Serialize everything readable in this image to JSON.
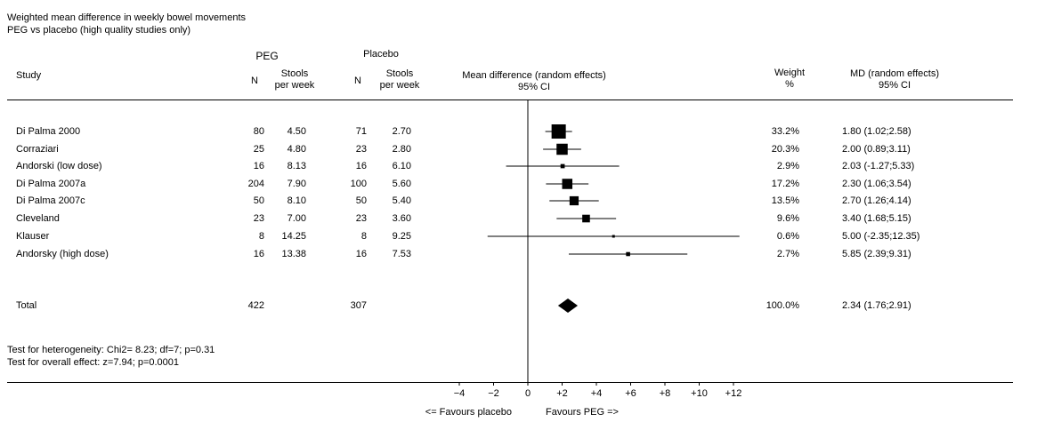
{
  "title_line1": "Weighted mean difference in weekly bowel movements",
  "title_line2": "PEG vs placebo (high quality studies only)",
  "headers": {
    "peg_group": "PEG",
    "placebo_group": "Placebo",
    "study": "Study",
    "n_peg": "N",
    "stools_peg_1": "Stools",
    "stools_peg_2": "per week",
    "n_placebo": "N",
    "stools_placebo_1": "Stools",
    "stools_placebo_2": "per week",
    "md_plot_1": "Mean difference (random effects)",
    "md_plot_2": "95% CI",
    "weight_1": "Weight",
    "weight_2": "%",
    "md_col_1": "MD (random effects)",
    "md_col_2": "95% CI"
  },
  "studies": [
    {
      "name": "Di Palma 2000",
      "n_peg": "80",
      "stools_peg": "4.50",
      "n_placebo": "71",
      "stools_placebo": "2.70",
      "weight": "33.2%",
      "md_text": "1.80 (1.02;2.58)"
    },
    {
      "name": "Corraziari",
      "n_peg": "25",
      "stools_peg": "4.80",
      "n_placebo": "23",
      "stools_placebo": "2.80",
      "weight": "20.3%",
      "md_text": "2.00 (0.89;3.11)"
    },
    {
      "name": "Andorski  (low dose)",
      "n_peg": "16",
      "stools_peg": "8.13",
      "n_placebo": "16",
      "stools_placebo": "6.10",
      "weight": "2.9%",
      "md_text": "2.03 (-1.27;5.33)"
    },
    {
      "name": "Di Palma 2007a",
      "n_peg": "204",
      "stools_peg": "7.90",
      "n_placebo": "100",
      "stools_placebo": "5.60",
      "weight": "17.2%",
      "md_text": "2.30 (1.06;3.54)"
    },
    {
      "name": "Di Palma 2007c",
      "n_peg": "50",
      "stools_peg": "8.10",
      "n_placebo": "50",
      "stools_placebo": "5.40",
      "weight": "13.5%",
      "md_text": "2.70 (1.26;4.14)"
    },
    {
      "name": "Cleveland",
      "n_peg": "23",
      "stools_peg": "7.00",
      "n_placebo": "23",
      "stools_placebo": "3.60",
      "weight": "9.6%",
      "md_text": "3.40 (1.68;5.15)"
    },
    {
      "name": "Klauser",
      "n_peg": "8",
      "stools_peg": "14.25",
      "n_placebo": "8",
      "stools_placebo": "9.25",
      "weight": "0.6%",
      "md_text": "5.00 (-2.35;12.35)"
    },
    {
      "name": "Andorsky (high dose)",
      "n_peg": "16",
      "stools_peg": "13.38",
      "n_placebo": "16",
      "stools_placebo": "7.53",
      "weight": "2.7%",
      "md_text": "5.85 (2.39;9.31)"
    }
  ],
  "total": {
    "name": "Total",
    "n_peg": "422",
    "n_placebo": "307",
    "weight": "100.0%",
    "md_text": "2.34 (1.76;2.91)"
  },
  "heterogeneity": "Test for heterogeneity: Chi2= 8.23; df=7; p=0.31",
  "overall_effect": "Test for overall effect: z=7.94; p=0.0001",
  "favours_left": "<= Favours placebo",
  "favours_right": "Favours PEG =>",
  "chart_data": {
    "type": "forest",
    "title": "Weighted mean difference in weekly bowel movements",
    "subtitle": "PEG vs placebo (high quality studies only)",
    "xlabel": "Mean difference (random effects) 95% CI",
    "xlim": [
      -4,
      12
    ],
    "ticks": [
      -4,
      -2,
      0,
      2,
      4,
      6,
      8,
      10,
      12
    ],
    "tick_labels": [
      "−4",
      "−2",
      "0",
      "+2",
      "+4",
      "+6",
      "+8",
      "+10",
      "+12"
    ],
    "null_line": 0,
    "studies": [
      {
        "name": "Di Palma 2000",
        "md": 1.8,
        "lower": 1.02,
        "upper": 2.58,
        "weight": 33.2
      },
      {
        "name": "Corraziari",
        "md": 2.0,
        "lower": 0.89,
        "upper": 3.11,
        "weight": 20.3
      },
      {
        "name": "Andorski  (low dose)",
        "md": 2.03,
        "lower": -1.27,
        "upper": 5.33,
        "weight": 2.9
      },
      {
        "name": "Di Palma 2007a",
        "md": 2.3,
        "lower": 1.06,
        "upper": 3.54,
        "weight": 17.2
      },
      {
        "name": "Di Palma 2007c",
        "md": 2.7,
        "lower": 1.26,
        "upper": 4.14,
        "weight": 13.5
      },
      {
        "name": "Cleveland",
        "md": 3.4,
        "lower": 1.68,
        "upper": 5.15,
        "weight": 9.6
      },
      {
        "name": "Klauser",
        "md": 5.0,
        "lower": -2.35,
        "upper": 12.35,
        "weight": 0.6
      },
      {
        "name": "Andorsky (high dose)",
        "md": 5.85,
        "lower": 2.39,
        "upper": 9.31,
        "weight": 2.7
      }
    ],
    "pooled": {
      "name": "Total",
      "md": 2.34,
      "lower": 1.76,
      "upper": 2.91,
      "weight": 100.0
    }
  }
}
